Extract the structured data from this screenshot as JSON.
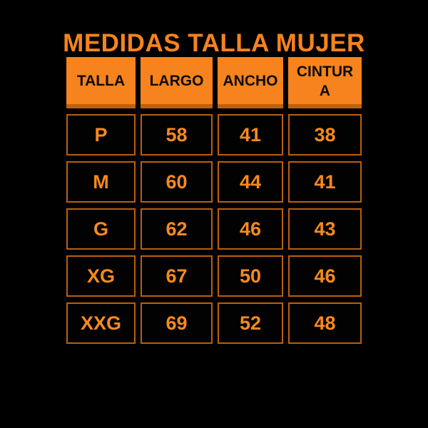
{
  "title": "MEDIDAS TALLA MUJER",
  "colors": {
    "background": "#000000",
    "accent_orange": "#F6831D",
    "cell_text_orange": "#F78A1C",
    "cell_border_orange": "#BA5F0C",
    "header_text": "#0A0A0A"
  },
  "table": {
    "columns": [
      "TALLA",
      "LARGO",
      "ANCHO",
      "CINTURA"
    ],
    "rows": [
      [
        "P",
        "58",
        "41",
        "38"
      ],
      [
        "M",
        "60",
        "44",
        "41"
      ],
      [
        "G",
        "62",
        "46",
        "43"
      ],
      [
        "XG",
        "67",
        "50",
        "46"
      ],
      [
        "XXG",
        "69",
        "52",
        "48"
      ]
    ]
  },
  "chart_data": {
    "type": "table",
    "title": "MEDIDAS TALLA MUJER",
    "columns": [
      "TALLA",
      "LARGO",
      "ANCHO",
      "CINTURA"
    ],
    "rows": [
      {
        "TALLA": "P",
        "LARGO": 58,
        "ANCHO": 41,
        "CINTURA": 38
      },
      {
        "TALLA": "M",
        "LARGO": 60,
        "ANCHO": 44,
        "CINTURA": 41
      },
      {
        "TALLA": "G",
        "LARGO": 62,
        "ANCHO": 46,
        "CINTURA": 43
      },
      {
        "TALLA": "XG",
        "LARGO": 67,
        "ANCHO": 50,
        "CINTURA": 46
      },
      {
        "TALLA": "XXG",
        "LARGO": 69,
        "ANCHO": 52,
        "CINTURA": 48
      }
    ]
  }
}
